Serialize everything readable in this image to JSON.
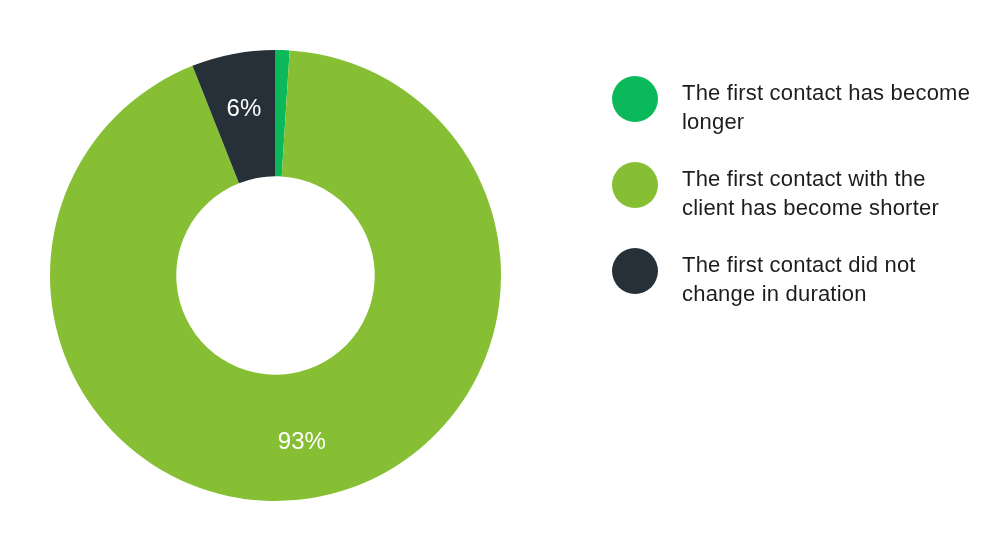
{
  "chart_data": {
    "type": "donut",
    "categories": [
      "The first contact has become longer",
      "The first contact with the client has become shorter",
      "The first contact did not change in duration"
    ],
    "values": [
      1,
      93,
      6
    ],
    "colors": [
      "#0bb95a",
      "#86bf33",
      "#263038"
    ],
    "value_labels": [
      null,
      "93%",
      "6%"
    ],
    "legend": "right"
  }
}
